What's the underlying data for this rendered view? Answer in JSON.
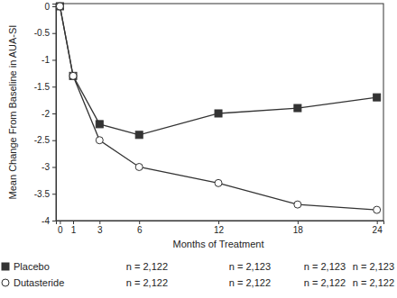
{
  "chart_data": {
    "type": "line",
    "x_label": "Months of Treatment",
    "y_label": "Mean Change From Baseline in AUA-SI",
    "x": [
      0,
      1,
      3,
      6,
      12,
      18,
      24
    ],
    "xlim": [
      -0.3,
      24.5
    ],
    "xticks": [
      0,
      1,
      3,
      6,
      12,
      18,
      24
    ],
    "ylim": [
      -4,
      0.05
    ],
    "yticks": [
      0,
      -0.5,
      -1,
      -1.5,
      -2,
      -2.5,
      -3,
      -3.5,
      -4
    ],
    "grid": false,
    "series": [
      {
        "name": "Placebo",
        "color": "#333333",
        "marker": "square",
        "line_style": "solid",
        "values": [
          0,
          -1.3,
          -2.2,
          -2.4,
          -2.0,
          -1.9,
          -1.7
        ],
        "n": [
          "n = 2,122",
          "n = 2,123",
          "n = 2,123",
          "n = 2,123"
        ]
      },
      {
        "name": "Dutasteride",
        "color": "#333333",
        "marker": "open-circle",
        "line_style": "solid",
        "values": [
          0,
          -1.3,
          -2.5,
          -3.0,
          -3.3,
          -3.7,
          -3.8
        ],
        "n": [
          "n = 2,122",
          "n = 2,122",
          "n = 2,122",
          "n = 2,122"
        ]
      }
    ]
  }
}
